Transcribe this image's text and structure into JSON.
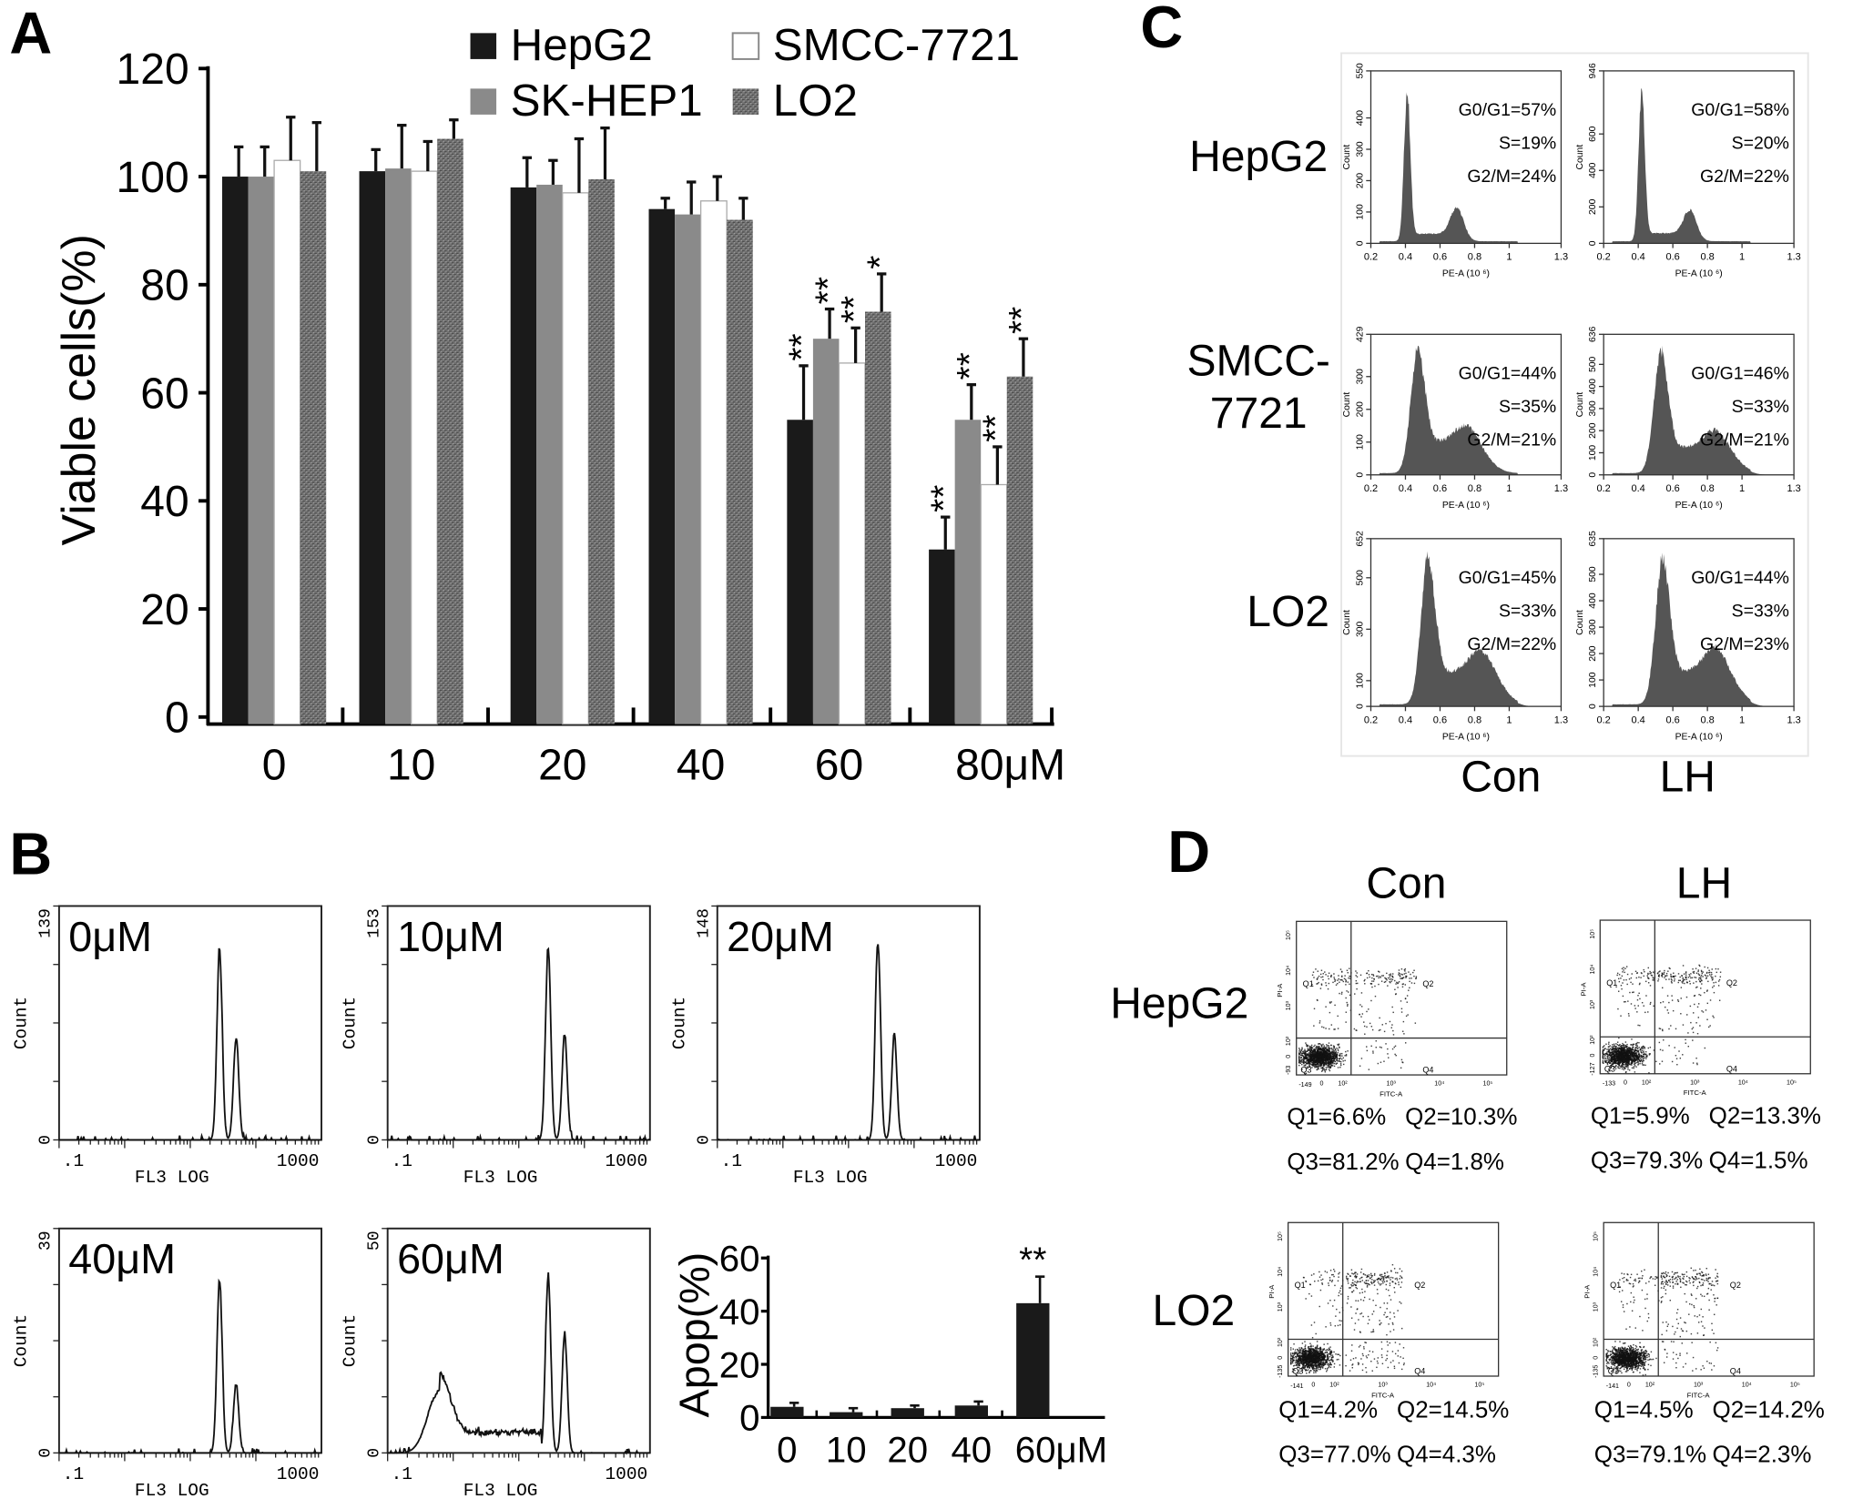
{
  "panel_labels": {
    "A": "A",
    "B": "B",
    "C": "C",
    "D": "D"
  },
  "chart_data": [
    {
      "panel": "A",
      "type": "bar",
      "categories": [
        "0",
        "10",
        "20",
        "40",
        "60",
        "80μM"
      ],
      "xlabel": "",
      "ylabel": "Viable cells(%)",
      "ylim": [
        0,
        120
      ],
      "yticks": [
        0,
        20,
        40,
        60,
        80,
        100,
        120
      ],
      "legend": "top",
      "series": [
        {
          "name": "HepG2",
          "color": "#1a1a1a",
          "fill": "solid",
          "values": [
            100,
            101,
            98,
            94,
            55,
            31
          ],
          "errors": [
            5.5,
            4,
            5.5,
            2,
            10,
            6
          ],
          "significance": [
            "",
            "",
            "",
            "",
            "**",
            "**"
          ]
        },
        {
          "name": "SK-HEP1",
          "color": "#8a8a8a",
          "fill": "solid",
          "values": [
            100,
            101.5,
            98.5,
            93,
            70,
            55
          ],
          "errors": [
            5.5,
            8,
            4.5,
            6,
            5.5,
            6.5
          ],
          "significance": [
            "",
            "",
            "",
            "",
            "**",
            "**"
          ]
        },
        {
          "name": "SMCC-7721",
          "color": "#ffffff",
          "fill": "outline",
          "values": [
            103,
            101,
            97,
            95.5,
            65.5,
            43
          ],
          "errors": [
            8,
            5.5,
            10,
            4.5,
            6.5,
            7
          ],
          "significance": [
            "",
            "",
            "",
            "",
            "**",
            "**"
          ]
        },
        {
          "name": "LO2",
          "color": "#6e6e6e",
          "fill": "textured",
          "values": [
            101,
            107,
            99.5,
            92,
            75,
            63
          ],
          "errors": [
            9,
            3.5,
            9.5,
            4,
            7,
            7
          ],
          "significance": [
            "",
            "",
            "",
            "",
            "*",
            "**"
          ]
        }
      ]
    },
    {
      "panel": "B",
      "type": "line",
      "xlabel": "FL3 LOG",
      "ylabel": "Count",
      "xscale": "log",
      "xlim": [
        0.1,
        1000
      ],
      "xticks": [
        ".1",
        "1000"
      ],
      "panels": [
        {
          "label": "0μM",
          "ymax": "139",
          "ymin": "0",
          "peaks": [
            {
              "fl3": 28,
              "count": 114
            },
            {
              "fl3": 50,
              "count": 62
            }
          ]
        },
        {
          "label": "10μM",
          "ymax": "153",
          "ymin": "0",
          "peaks": [
            {
              "fl3": 28,
              "count": 125
            },
            {
              "fl3": 50,
              "count": 69
            }
          ]
        },
        {
          "label": "20μM",
          "ymax": "148",
          "ymin": "0",
          "peaks": [
            {
              "fl3": 28,
              "count": 126
            },
            {
              "fl3": 50,
              "count": 67
            }
          ]
        },
        {
          "label": "40μM",
          "ymax": "39",
          "ymin": "0",
          "peaks": [
            {
              "fl3": 28,
              "count": 30
            },
            {
              "fl3": 50,
              "count": 12
            }
          ]
        },
        {
          "label": "60μM",
          "ymax": "50",
          "ymin": "0",
          "peaks": [
            {
              "fl3": 0.6,
              "count": 13.5,
              "broad": true
            },
            {
              "fl3": 28,
              "count": 40
            },
            {
              "fl3": 50,
              "count": 27
            }
          ]
        }
      ]
    },
    {
      "panel": "B-inset",
      "type": "bar",
      "categories": [
        "0",
        "10",
        "20",
        "40",
        "60μM"
      ],
      "values": [
        4,
        2,
        3.5,
        4.5,
        43
      ],
      "errors": [
        1.5,
        1.5,
        1,
        1.5,
        10
      ],
      "significance": [
        "",
        "",
        "",
        "",
        "**"
      ],
      "ylabel": "Apop(%)",
      "xlabel": "",
      "ylim": [
        0,
        60
      ],
      "yticks": [
        0,
        20,
        40,
        60
      ],
      "color": "#1a1a1a"
    },
    {
      "panel": "C",
      "type": "area",
      "xlabel": "PE-A (10 ⁶)",
      "ylabel": "Count",
      "xlim": [
        0.2,
        1.3
      ],
      "xticks": [
        "0.2",
        "0.4",
        "0.6",
        "0.8",
        "1",
        "1.3"
      ],
      "columns": [
        "Con",
        "LH"
      ],
      "color": "#555555",
      "rows": [
        {
          "label_lines": [
            "HepG2"
          ],
          "panels": [
            {
              "ymax": 550,
              "yticks": [
                "0",
                "100",
                "200",
                "300",
                "400",
                "550"
              ],
              "g0g1": "G0/G1=57%",
              "s": "S=19%",
              "g2m": "G2/M=24%",
              "g1_peak": 0.41,
              "g2_peak": 0.7
            },
            {
              "ymax": 946,
              "yticks": [
                "0",
                "200",
                "400",
                "600",
                "946"
              ],
              "g0g1": "G0/G1=58%",
              "s": "S=20%",
              "g2m": "G2/M=22%",
              "g1_peak": 0.42,
              "g2_peak": 0.7
            }
          ]
        },
        {
          "label_lines": [
            "SMCC-",
            "7721"
          ],
          "panels": [
            {
              "ymax": 429,
              "yticks": [
                "0",
                "100",
                "200",
                "300",
                "429"
              ],
              "g0g1": "G0/G1=44%",
              "s": "S=35%",
              "g2m": "G2/M=21%",
              "g1_peak": 0.47,
              "g2_peak": 0.79
            },
            {
              "ymax": 636,
              "yticks": [
                "0",
                "100",
                "200",
                "300",
                "400",
                "500",
                "636"
              ],
              "g0g1": "G0/G1=46%",
              "s": "S=33%",
              "g2m": "G2/M=21%",
              "g1_peak": 0.53,
              "g2_peak": 0.88
            }
          ]
        },
        {
          "label_lines": [
            "LO2"
          ],
          "panels": [
            {
              "ymax": 652,
              "yticks": [
                "0",
                "100",
                "300",
                "500",
                "652"
              ],
              "g0g1": "G0/G1=45%",
              "s": "S=33%",
              "g2m": "G2/M=22%",
              "g1_peak": 0.53,
              "g2_peak": 0.87
            },
            {
              "ymax": 635,
              "yticks": [
                "0",
                "100",
                "200",
                "300",
                "400",
                "500",
                "635"
              ],
              "g0g1": "G0/G1=44%",
              "s": "S=33%",
              "g2m": "G2/M=23%",
              "g1_peak": 0.54,
              "g2_peak": 0.88
            }
          ]
        }
      ]
    },
    {
      "panel": "D",
      "type": "scatter",
      "xlabel": "FITC-A",
      "ylabel": "PI-A",
      "columns": [
        "Con",
        "LH"
      ],
      "quadrant_names": [
        "Q1",
        "Q2",
        "Q3",
        "Q4"
      ],
      "xticks": [
        "0",
        "10²",
        "10³",
        "10⁴",
        "10⁵"
      ],
      "yticks": [
        "0",
        "10²",
        "10³",
        "10⁴",
        "10⁵"
      ],
      "rows": [
        {
          "label": "HepG2",
          "panels": [
            {
              "xmin": "-149",
              "ymin": "-93",
              "q1": "Q1=6.6%",
              "q2": "Q2=10.3%",
              "q3": "Q3=81.2%",
              "q4": "Q4=1.8%"
            },
            {
              "xmin": "-133",
              "ymin": "-127",
              "q1": "Q1=5.9%",
              "q2": "Q2=13.3%",
              "q3": "Q3=79.3%",
              "q4": "Q4=1.5%"
            }
          ]
        },
        {
          "label": "LO2",
          "panels": [
            {
              "xmin": "-141",
              "ymin": "-135",
              "q1": "Q1=4.2%",
              "q2": "Q2=14.5%",
              "q3": "Q3=77.0%",
              "q4": "Q4=4.3%"
            },
            {
              "xmin": "-141",
              "ymin": "-135",
              "q1": "Q1=4.5%",
              "q2": "Q2=14.2%",
              "q3": "Q3=79.1%",
              "q4": "Q4=2.3%"
            }
          ]
        }
      ]
    }
  ]
}
